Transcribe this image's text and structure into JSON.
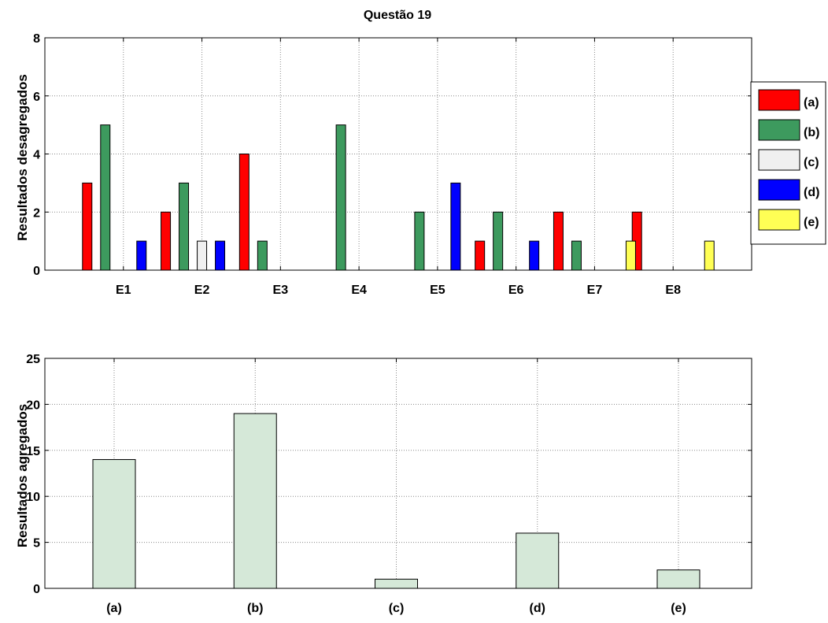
{
  "chart_data": [
    {
      "type": "bar",
      "title": "Questão 19",
      "ylabel": "Resultados desagregados",
      "xlabel": "",
      "categories": [
        "E1",
        "E2",
        "E3",
        "E4",
        "E5",
        "E6",
        "E7",
        "E8"
      ],
      "series": [
        {
          "name": "(a)",
          "color": "#ff0000",
          "values": [
            3,
            2,
            4,
            0,
            0,
            1,
            2,
            2
          ]
        },
        {
          "name": "(b)",
          "color": "#3d9a5e",
          "values": [
            5,
            3,
            1,
            5,
            2,
            2,
            1,
            0
          ]
        },
        {
          "name": "(c)",
          "color": "#f0f0f0",
          "values": [
            0,
            1,
            0,
            0,
            0,
            0,
            0,
            0
          ]
        },
        {
          "name": "(d)",
          "color": "#0000ff",
          "values": [
            1,
            1,
            0,
            0,
            3,
            1,
            0,
            0
          ]
        },
        {
          "name": "(e)",
          "color": "#ffff55",
          "values": [
            0,
            0,
            0,
            0,
            0,
            0,
            1,
            1
          ]
        }
      ],
      "ylim": [
        0,
        8
      ],
      "yticks": [
        "0",
        "2",
        "4",
        "6",
        "8"
      ],
      "grid": true,
      "legend": "right"
    },
    {
      "type": "bar",
      "title": "",
      "ylabel": "Resultados agregados",
      "xlabel": "",
      "categories": [
        "(a)",
        "(b)",
        "(c)",
        "(d)",
        "(e)"
      ],
      "values": [
        14,
        19,
        1,
        6,
        2
      ],
      "color": "#d5e8d8",
      "ylim": [
        0,
        25
      ],
      "yticks": [
        "0",
        "5",
        "10",
        "15",
        "20",
        "25"
      ],
      "grid": true
    }
  ]
}
